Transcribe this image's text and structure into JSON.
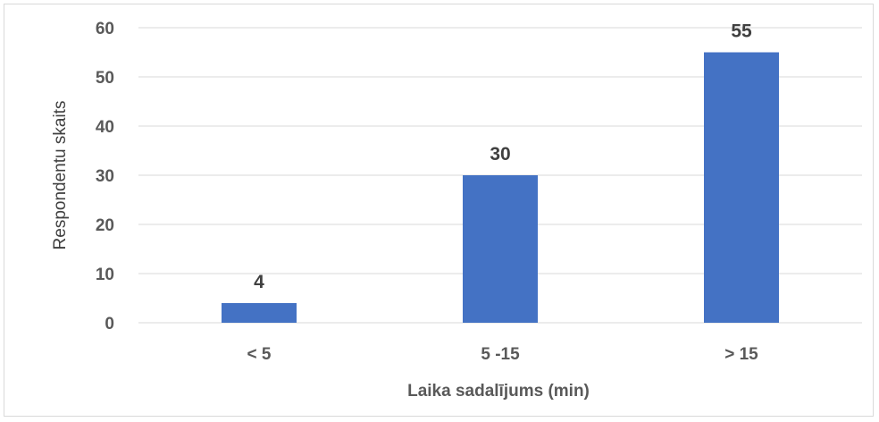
{
  "chart_data": {
    "type": "bar",
    "categories": [
      "< 5",
      "5 -15",
      "> 15"
    ],
    "values": [
      4,
      30,
      55
    ],
    "title": "",
    "xlabel": "Laika sadalījums (min)",
    "ylabel": "Respondentu skaits",
    "ylim": [
      0,
      60
    ],
    "yticks": [
      0,
      10,
      20,
      30,
      40,
      50,
      60
    ],
    "grid": true,
    "legend": "none",
    "data_labels": true,
    "bar_color": "#4472c4",
    "gridline_color": "#d9d9d9",
    "text_color": "#595959"
  }
}
